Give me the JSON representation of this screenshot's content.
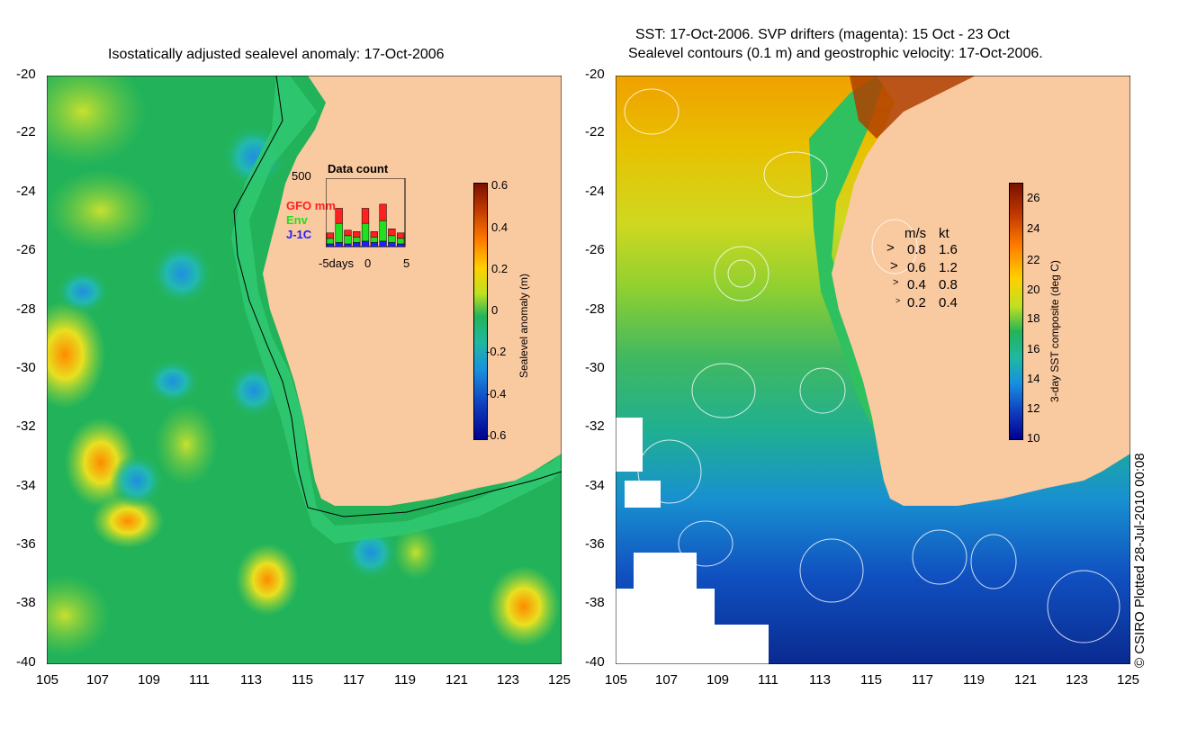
{
  "left": {
    "title": "Isostatically adjusted sealevel anomaly: 17-Oct-2006",
    "lat_labels": [
      "-20",
      "-22",
      "-24",
      "-26",
      "-28",
      "-30",
      "-32",
      "-34",
      "-36",
      "-38",
      "-40"
    ],
    "lon_labels": [
      "105",
      "107",
      "109",
      "111",
      "113",
      "115",
      "117",
      "119",
      "121",
      "123",
      "125"
    ],
    "colorbar": {
      "title": "Sealevel anomaly (m)",
      "labels": [
        "0.6",
        "0.4",
        "0.2",
        "0",
        "-0.2",
        "-0.4",
        "-0.6"
      ]
    },
    "data_count": {
      "title": "Data count",
      "ymax_label": "500",
      "xlabel": "-5days",
      "x0_label": "0",
      "x5_label": "5",
      "legend": [
        {
          "label": "GFO mm",
          "color": "#ff2020"
        },
        {
          "label": "Env",
          "color": "#20e020"
        },
        {
          "label": "J-1C",
          "color": "#2020ff"
        }
      ],
      "bars": [
        {
          "gfo": 40,
          "env": 40,
          "j1c": 20
        },
        {
          "gfo": 110,
          "env": 140,
          "j1c": 30
        },
        {
          "gfo": 40,
          "env": 60,
          "j1c": 20
        },
        {
          "gfo": 40,
          "env": 40,
          "j1c": 30
        },
        {
          "gfo": 110,
          "env": 130,
          "j1c": 40
        },
        {
          "gfo": 40,
          "env": 40,
          "j1c": 30
        },
        {
          "gfo": 120,
          "env": 150,
          "j1c": 40
        },
        {
          "gfo": 50,
          "env": 50,
          "j1c": 30
        },
        {
          "gfo": 40,
          "env": 40,
          "j1c": 20
        }
      ]
    }
  },
  "right": {
    "title_line1": "SST: 17-Oct-2006. SVP drifters (magenta): 15 Oct - 23 Oct",
    "title_line2": "Sealevel contours (0.1 m) and geostrophic velocity: 17-Oct-2006.",
    "lat_labels": [
      "-20",
      "-22",
      "-24",
      "-26",
      "-28",
      "-30",
      "-32",
      "-34",
      "-36",
      "-38",
      "-40"
    ],
    "lon_labels": [
      "105",
      "107",
      "109",
      "111",
      "113",
      "115",
      "117",
      "119",
      "121",
      "123",
      "125"
    ],
    "colorbar": {
      "title": "3-day SST composite (deg C)",
      "labels": [
        "26",
        "24",
        "22",
        "20",
        "18",
        "16",
        "14",
        "12",
        "10"
      ]
    },
    "speed_legend": {
      "header_ms": "m/s",
      "header_kt": "kt",
      "rows": [
        {
          "ms": "0.8",
          "kt": "1.6"
        },
        {
          "ms": "0.6",
          "kt": "1.2"
        },
        {
          "ms": "0.4",
          "kt": "0.8"
        },
        {
          "ms": "0.2",
          "kt": "0.4"
        }
      ]
    }
  },
  "copyright": "© CSIRO Plotted 28-Jul-2010 00:08",
  "colors": {
    "land": "#f9c9a0",
    "ocean_green": "#22b35a",
    "shelf": "#2fc870"
  }
}
